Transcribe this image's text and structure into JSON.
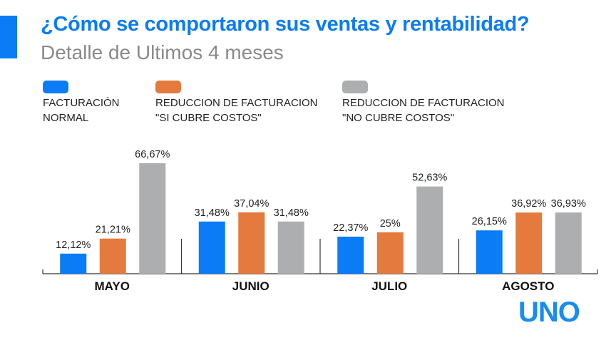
{
  "header": {
    "title": "¿Cómo se comportaron sus ventas y rentabilidad?",
    "subtitle": "Detalle de Ultimos 4 meses"
  },
  "brand": {
    "logo_text": "UNO",
    "accent_color": "#0a7cf5"
  },
  "chart_data": {
    "type": "bar",
    "title": "¿Cómo se comportaron sus ventas y rentabilidad?",
    "subtitle": "Detalle de Ultimos 4 meses",
    "xlabel": "",
    "ylabel": "",
    "ylim": [
      0,
      70
    ],
    "grid": false,
    "legend_position": "top-left",
    "categories": [
      "MAYO",
      "JUNIO",
      "JULIO",
      "AGOSTO"
    ],
    "series": [
      {
        "name": "FACTURACIÓN\nNORMAL",
        "color": "#0a7cf5",
        "values": [
          12.12,
          31.48,
          22.37,
          26.15
        ],
        "labels": [
          "12,12%",
          "31,48%",
          "22,37%",
          "26,15%"
        ]
      },
      {
        "name": "REDUCCION DE FACTURACION\n\"SI CUBRE COSTOS\"",
        "color": "#e57a3e",
        "values": [
          21.21,
          37.04,
          25,
          36.92
        ],
        "labels": [
          "21,21%",
          "37,04%",
          "25%",
          "36,92%"
        ]
      },
      {
        "name": "REDUCCION DE FACTURACION\n\"NO CUBRE COSTOS\"",
        "color": "#adaeb0",
        "values": [
          66.67,
          31.48,
          52.63,
          36.93
        ],
        "labels": [
          "66,67%",
          "31,48%",
          "52,63%",
          "36,93%"
        ]
      }
    ]
  }
}
